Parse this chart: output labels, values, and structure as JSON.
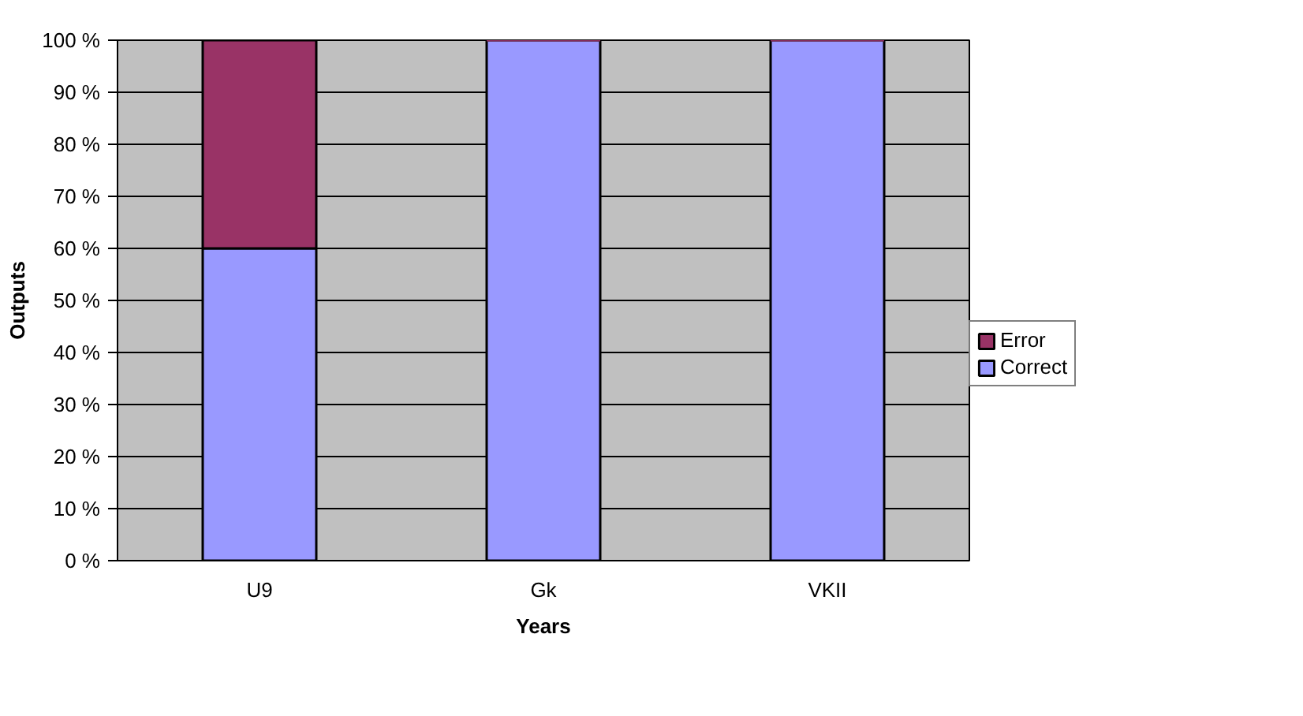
{
  "chart_data": {
    "type": "bar",
    "stacked": true,
    "xlabel": "Years",
    "ylabel": "Outputs",
    "categories": [
      "U9",
      "Gk",
      "VKII"
    ],
    "series": [
      {
        "name": "Correct",
        "color": "#9999ff",
        "values": [
          60,
          100,
          100
        ]
      },
      {
        "name": "Error",
        "color": "#993366",
        "values": [
          40,
          0,
          0
        ]
      }
    ],
    "ylim": [
      0,
      100
    ],
    "yticks": [
      {
        "value": 0,
        "label": "0 %"
      },
      {
        "value": 10,
        "label": "10 %"
      },
      {
        "value": 20,
        "label": "20 %"
      },
      {
        "value": 30,
        "label": "30 %"
      },
      {
        "value": 40,
        "label": "40 %"
      },
      {
        "value": 50,
        "label": "50 %"
      },
      {
        "value": 60,
        "label": "60 %"
      },
      {
        "value": 70,
        "label": "70 %"
      },
      {
        "value": 80,
        "label": "80 %"
      },
      {
        "value": 90,
        "label": "90 %"
      },
      {
        "value": 100,
        "label": "100 %"
      }
    ],
    "grid": "y",
    "legend": "right"
  }
}
